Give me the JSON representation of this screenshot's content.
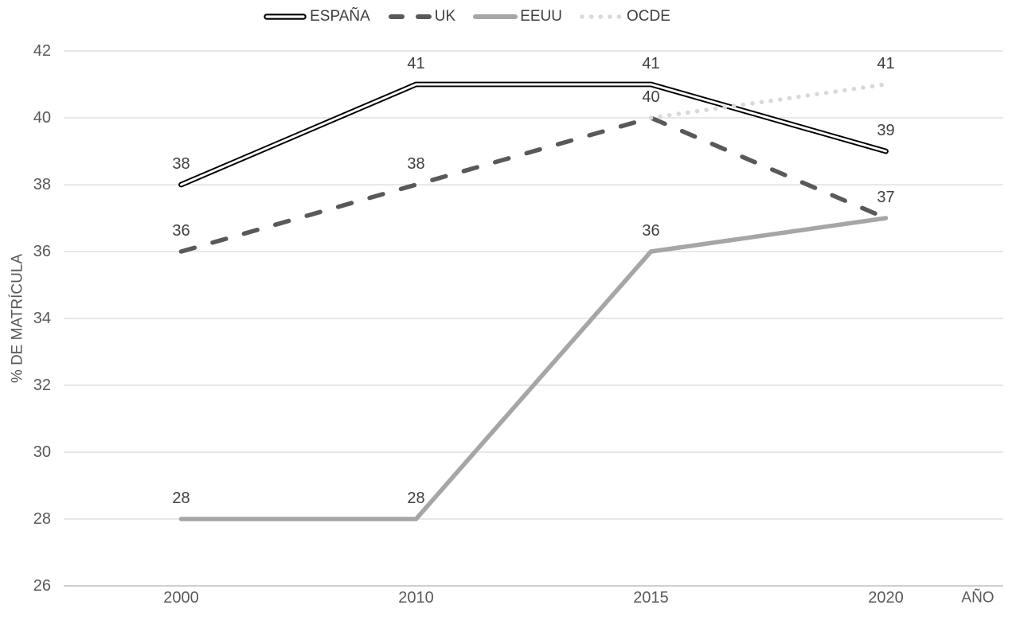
{
  "chart_data": {
    "type": "line",
    "title": "",
    "xlabel": "AÑO",
    "ylabel": "% DE MATRÍCULA",
    "categories": [
      "2000",
      "2010",
      "2015",
      "2020"
    ],
    "ylim": [
      26,
      42
    ],
    "ytick_step": 2,
    "yticks": [
      26,
      28,
      30,
      32,
      34,
      36,
      38,
      40,
      42
    ],
    "grid": true,
    "legend_position": "top",
    "series": [
      {
        "name": "ESPAÑA",
        "style": "double-outline",
        "color": "#000000",
        "inner_color": "#ffffff",
        "values": [
          38,
          41,
          41,
          39
        ],
        "labels": [
          38,
          41,
          41,
          39
        ]
      },
      {
        "name": "UK",
        "style": "dashed",
        "color": "#595959",
        "values": [
          36,
          38,
          40,
          37
        ],
        "labels": [
          36,
          38,
          40,
          null
        ]
      },
      {
        "name": "EEUU",
        "style": "solid",
        "color": "#a6a6a6",
        "values": [
          28,
          28,
          36,
          37
        ],
        "labels": [
          28,
          28,
          36,
          37
        ]
      },
      {
        "name": "OCDE",
        "style": "dotted",
        "color": "#d9d9d9",
        "values": [
          null,
          null,
          40,
          41
        ],
        "labels": [
          null,
          null,
          null,
          41
        ]
      }
    ],
    "colors": {
      "background": "#ffffff",
      "gridline": "#d9d9d9",
      "axis_line": "#bfbfbf",
      "tick_label": "#595959",
      "axis_title": "#595959",
      "data_label": "#404040",
      "legend_text": "#404040"
    }
  }
}
